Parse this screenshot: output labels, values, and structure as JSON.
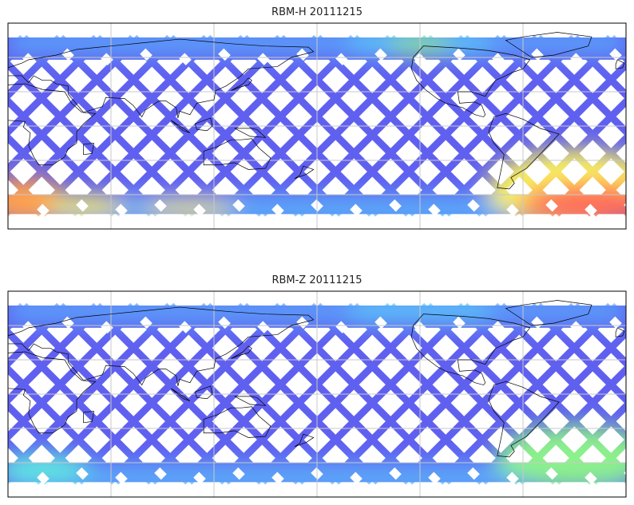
{
  "panels": [
    {
      "title": "RBM-H 20111215",
      "variant": "H"
    },
    {
      "title": "RBM-Z 20111215",
      "variant": "Z"
    }
  ],
  "chart_data": [
    {
      "type": "heatmap",
      "title": "RBM-H 20111215",
      "projection": "cylindrical",
      "lon_range": [
        0,
        360
      ],
      "lat_range": [
        -90,
        90
      ],
      "grid_lon_step": 60,
      "grid_lat_step": 30,
      "grid": true,
      "colormap": "jet",
      "coverage": "satellite swaths",
      "high_values": [
        "southern high latitudes, South Atlantic",
        "southern high latitudes, near 0-30E"
      ]
    },
    {
      "type": "heatmap",
      "title": "RBM-Z 20111215",
      "projection": "cylindrical",
      "lon_range": [
        0,
        360
      ],
      "lat_range": [
        -90,
        90
      ],
      "grid_lon_step": 60,
      "grid_lat_step": 30,
      "grid": true,
      "colormap": "jet",
      "coverage": "satellite swaths",
      "high_values": [
        "South Atlantic moderate"
      ]
    }
  ],
  "colors": {
    "low": "#6060f0",
    "mid": "#5ac8fa",
    "green": "#8cf08c",
    "yellow": "#f8f060",
    "high": "#ff6a5a",
    "grid": "#c8c8c8",
    "coast": "#000000"
  }
}
